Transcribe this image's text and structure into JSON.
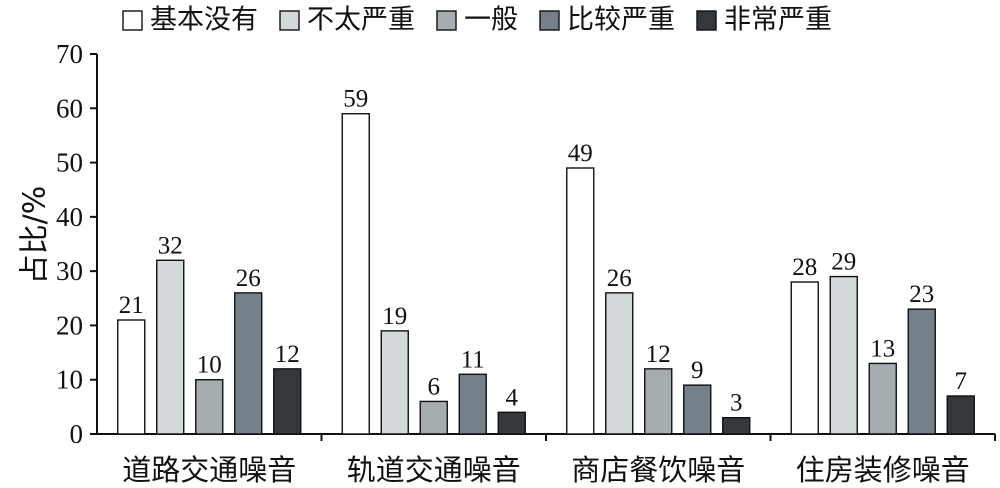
{
  "chart_data": {
    "type": "bar",
    "title": "",
    "xlabel": "",
    "ylabel": "占比/%",
    "ylim": [
      0,
      70
    ],
    "yticks": [
      0,
      10,
      20,
      30,
      40,
      50,
      60,
      70
    ],
    "categories": [
      "道路交通噪音",
      "轨道交通噪音",
      "商店餐饮噪音",
      "住房装修噪音"
    ],
    "series": [
      {
        "name": "基本没有",
        "color": "#ffffff",
        "values": [
          21,
          59,
          49,
          28
        ]
      },
      {
        "name": "不太严重",
        "color": "#d3d8da",
        "values": [
          32,
          19,
          26,
          29
        ]
      },
      {
        "name": "一般",
        "color": "#a6adb1",
        "values": [
          10,
          6,
          12,
          13
        ]
      },
      {
        "name": "比较严重",
        "color": "#76808a",
        "values": [
          26,
          11,
          9,
          23
        ]
      },
      {
        "name": "非常严重",
        "color": "#33383d",
        "values": [
          12,
          4,
          3,
          7
        ]
      }
    ],
    "legend_position": "top",
    "grid": false
  }
}
